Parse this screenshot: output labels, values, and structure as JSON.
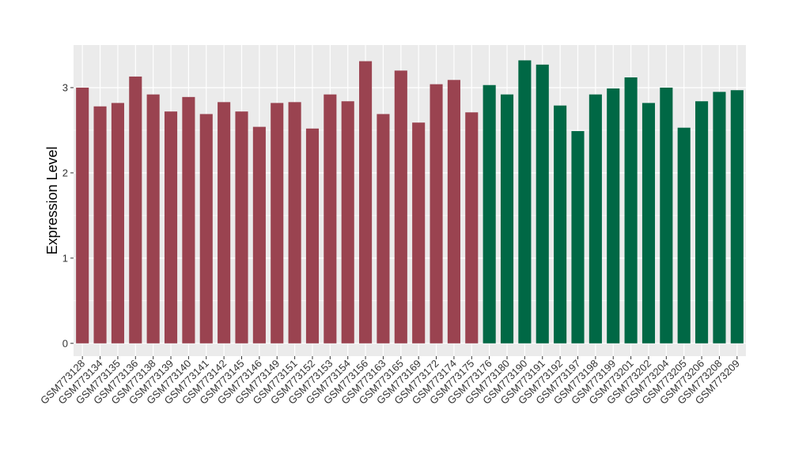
{
  "chart_data": {
    "type": "bar",
    "title": "",
    "xlabel": "",
    "ylabel": "Expression Level",
    "ylim": [
      -0.15,
      3.5
    ],
    "yticks": [
      0,
      1,
      2,
      3
    ],
    "grid": true,
    "legend": "none",
    "colors": {
      "group_a": "#9a4350",
      "group_b": "#006845",
      "panel": "#ebebeb",
      "grid": "#ffffff"
    },
    "categories": [
      "GSM773128",
      "GSM773134",
      "GSM773135",
      "GSM773136",
      "GSM773138",
      "GSM773139",
      "GSM773140",
      "GSM773141",
      "GSM773142",
      "GSM773145",
      "GSM773146",
      "GSM773149",
      "GSM773151",
      "GSM773152",
      "GSM773153",
      "GSM773154",
      "GSM773156",
      "GSM773163",
      "GSM773165",
      "GSM773169",
      "GSM773172",
      "GSM773174",
      "GSM773175",
      "GSM773176",
      "GSM773180",
      "GSM773190",
      "GSM773191",
      "GSM773192",
      "GSM773197",
      "GSM773198",
      "GSM773199",
      "GSM773201",
      "GSM773202",
      "GSM773204",
      "GSM773205",
      "GSM773206",
      "GSM773208",
      "GSM773209"
    ],
    "values": [
      3.0,
      2.78,
      2.82,
      3.13,
      2.92,
      2.72,
      2.89,
      2.69,
      2.83,
      2.72,
      2.54,
      2.82,
      2.83,
      2.52,
      2.92,
      2.84,
      3.31,
      2.69,
      3.2,
      2.59,
      3.04,
      3.09,
      2.71,
      3.03,
      2.92,
      3.32,
      3.27,
      2.79,
      2.49,
      2.92,
      2.99,
      3.12,
      2.82,
      3.0,
      2.53,
      2.84,
      2.95,
      2.97
    ],
    "groups": [
      "a",
      "a",
      "a",
      "a",
      "a",
      "a",
      "a",
      "a",
      "a",
      "a",
      "a",
      "a",
      "a",
      "a",
      "a",
      "a",
      "a",
      "a",
      "a",
      "a",
      "a",
      "a",
      "a",
      "b",
      "b",
      "b",
      "b",
      "b",
      "b",
      "b",
      "b",
      "b",
      "b",
      "b",
      "b",
      "b",
      "b",
      "b"
    ]
  }
}
